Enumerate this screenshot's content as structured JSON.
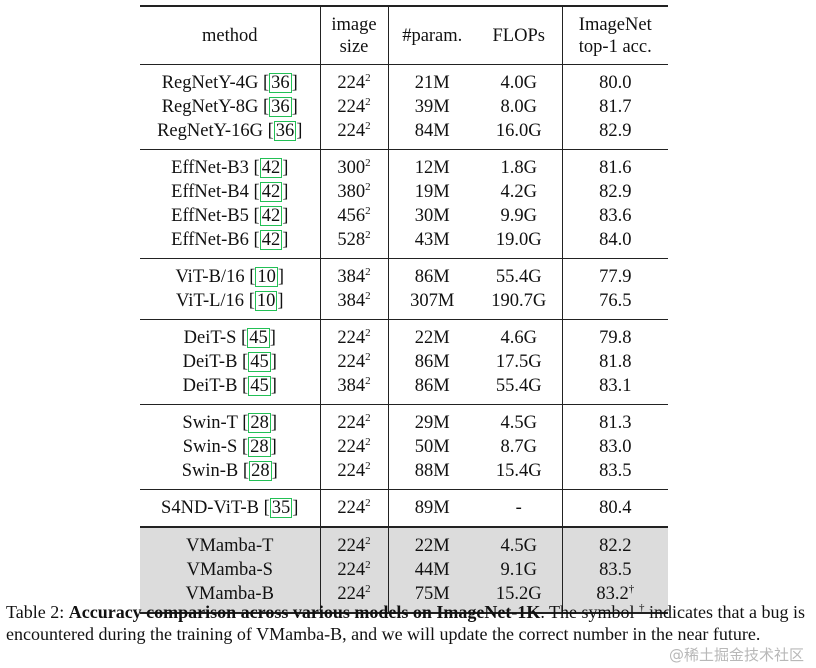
{
  "header": {
    "method": "method",
    "image_size": [
      "image",
      "size"
    ],
    "param": "#param.",
    "flops": "FLOPs",
    "acc": [
      "ImageNet",
      "top-1 acc."
    ]
  },
  "groups": [
    {
      "shaded": false,
      "rows": [
        {
          "name": "RegNetY-4G",
          "cite": "36",
          "size": "224",
          "param": "21M",
          "flops": "4.0G",
          "acc": "80.0"
        },
        {
          "name": "RegNetY-8G",
          "cite": "36",
          "size": "224",
          "param": "39M",
          "flops": "8.0G",
          "acc": "81.7"
        },
        {
          "name": "RegNetY-16G",
          "cite": "36",
          "size": "224",
          "param": "84M",
          "flops": "16.0G",
          "acc": "82.9"
        }
      ]
    },
    {
      "shaded": false,
      "rows": [
        {
          "name": "EffNet-B3",
          "cite": "42",
          "size": "300",
          "param": "12M",
          "flops": "1.8G",
          "acc": "81.6"
        },
        {
          "name": "EffNet-B4",
          "cite": "42",
          "size": "380",
          "param": "19M",
          "flops": "4.2G",
          "acc": "82.9"
        },
        {
          "name": "EffNet-B5",
          "cite": "42",
          "size": "456",
          "param": "30M",
          "flops": "9.9G",
          "acc": "83.6"
        },
        {
          "name": "EffNet-B6",
          "cite": "42",
          "size": "528",
          "param": "43M",
          "flops": "19.0G",
          "acc": "84.0"
        }
      ]
    },
    {
      "shaded": false,
      "rows": [
        {
          "name": "ViT-B/16",
          "cite": "10",
          "size": "384",
          "param": "86M",
          "flops": "55.4G",
          "acc": "77.9"
        },
        {
          "name": "ViT-L/16",
          "cite": "10",
          "size": "384",
          "param": "307M",
          "flops": "190.7G",
          "acc": "76.5"
        }
      ]
    },
    {
      "shaded": false,
      "rows": [
        {
          "name": "DeiT-S",
          "cite": "45",
          "size": "224",
          "param": "22M",
          "flops": "4.6G",
          "acc": "79.8"
        },
        {
          "name": "DeiT-B",
          "cite": "45",
          "size": "224",
          "param": "86M",
          "flops": "17.5G",
          "acc": "81.8"
        },
        {
          "name": "DeiT-B",
          "cite": "45",
          "size": "384",
          "param": "86M",
          "flops": "55.4G",
          "acc": "83.1"
        }
      ]
    },
    {
      "shaded": false,
      "rows": [
        {
          "name": "Swin-T",
          "cite": "28",
          "size": "224",
          "param": "29M",
          "flops": "4.5G",
          "acc": "81.3"
        },
        {
          "name": "Swin-S",
          "cite": "28",
          "size": "224",
          "param": "50M",
          "flops": "8.7G",
          "acc": "83.0"
        },
        {
          "name": "Swin-B",
          "cite": "28",
          "size": "224",
          "param": "88M",
          "flops": "15.4G",
          "acc": "83.5"
        }
      ]
    },
    {
      "shaded": false,
      "rows": [
        {
          "name": "S4ND-ViT-B",
          "cite": "35",
          "size": "224",
          "param": "89M",
          "flops": "-",
          "acc": "80.4"
        }
      ]
    },
    {
      "shaded": true,
      "rows": [
        {
          "name": "VMamba-T",
          "cite": "",
          "size": "224",
          "param": "22M",
          "flops": "4.5G",
          "acc": "82.2"
        },
        {
          "name": "VMamba-S",
          "cite": "",
          "size": "224",
          "param": "44M",
          "flops": "9.1G",
          "acc": "83.5"
        },
        {
          "name": "VMamba-B",
          "cite": "",
          "size": "224",
          "param": "75M",
          "flops": "15.2G",
          "acc": "83.2",
          "acc_mark": "†"
        }
      ]
    }
  ],
  "size_exponent": "2",
  "caption": {
    "label": "Table 2: ",
    "bold": "Accuracy comparison across various models on ImageNet-1K",
    "rest_a": ". The symbol ",
    "dagger": "†",
    "rest_b": " indicates that a bug is encountered during the training of VMamba-B, and we will update the correct number in the near future."
  },
  "watermark": "@稀土掘金技术社区"
}
